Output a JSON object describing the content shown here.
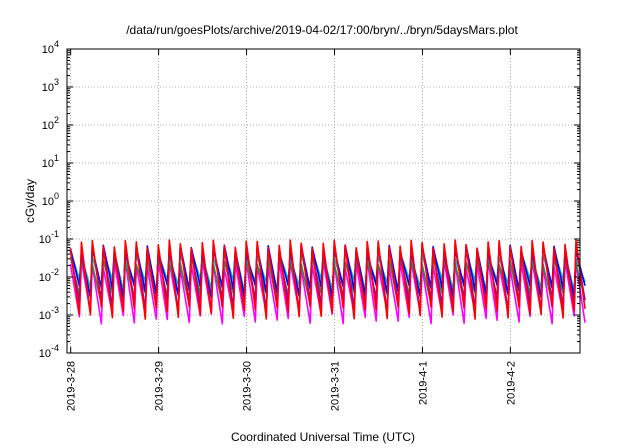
{
  "chart_data": {
    "type": "line",
    "title": "/data/run/goesPlots/archive/2019-04-02/17:00/bryn/../bryn/5daysMars.plot",
    "xlabel": "Coordinated Universal Time (UTC)",
    "ylabel": "cGy/day",
    "y_scale": "log",
    "ylim": [
      0.0001,
      10000
    ],
    "y_ticks": [
      {
        "base": "10",
        "exp": "-4",
        "value": 0.0001
      },
      {
        "base": "10",
        "exp": "-3",
        "value": 0.001
      },
      {
        "base": "10",
        "exp": "-2",
        "value": 0.01
      },
      {
        "base": "10",
        "exp": "-1",
        "value": 0.1
      },
      {
        "base": "10",
        "exp": "0",
        "value": 1
      },
      {
        "base": "10",
        "exp": "1",
        "value": 10
      },
      {
        "base": "10",
        "exp": "2",
        "value": 100
      },
      {
        "base": "10",
        "exp": "3",
        "value": 1000
      },
      {
        "base": "10",
        "exp": "4",
        "value": 10000
      }
    ],
    "x_axis": "date",
    "xlim": [
      "2019-03-27T23:00",
      "2019-04-02T19:00"
    ],
    "x_ticks": [
      {
        "label": "2019-3-28",
        "value": "2019-03-28T00:00"
      },
      {
        "label": "2019-3-29",
        "value": "2019-03-29T00:00"
      },
      {
        "label": "2019-3-30",
        "value": "2019-03-30T00:00"
      },
      {
        "label": "2019-3-31",
        "value": "2019-03-31T00:00"
      },
      {
        "label": "2019-4-1",
        "value": "2019-04-01T00:00"
      },
      {
        "label": "2019-4-2",
        "value": "2019-04-02T00:00"
      }
    ],
    "grid": true,
    "legend": "none",
    "oscillation_period_hours": 3,
    "series": [
      {
        "color": "#ff0000",
        "peak": 0.075,
        "trough": 0.0012
      },
      {
        "color": "#8b00b0",
        "peak": 0.06,
        "trough": 0.0018
      },
      {
        "color": "#0000ff",
        "peak": 0.055,
        "trough": 0.0045
      },
      {
        "color": "#00c0c0",
        "peak": 0.04,
        "trough": 0.0065
      },
      {
        "color": "#2e8b57",
        "peak": 0.028,
        "trough": 0.0028
      },
      {
        "color": "#ff00ff",
        "peak": 0.022,
        "trough": 0.0009
      }
    ]
  }
}
